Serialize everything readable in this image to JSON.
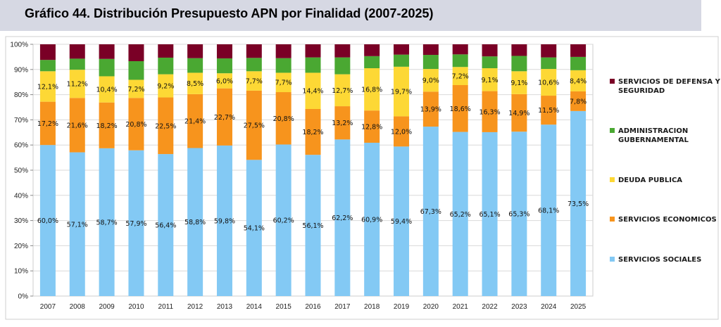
{
  "header": {
    "title": "Gráfico 44. Distribución Presupuesto APN por Finalidad (2007-2025)"
  },
  "chart_data": {
    "type": "bar",
    "stacked": true,
    "title": "Gráfico 44. Distribución Presupuesto APN por Finalidad (2007-2025)",
    "categories": [
      "2007",
      "2008",
      "2009",
      "2010",
      "2011",
      "2012",
      "2013",
      "2014",
      "2015",
      "2016",
      "2017",
      "2018",
      "2019",
      "2020",
      "2021",
      "2022",
      "2023",
      "2024",
      "2025"
    ],
    "ylim": [
      0,
      100
    ],
    "y_ticks": [
      "0%",
      "10%",
      "20%",
      "30%",
      "40%",
      "50%",
      "60%",
      "70%",
      "80%",
      "90%",
      "100%"
    ],
    "grid": true,
    "legend_position": "right",
    "series": [
      {
        "name": "SERVICIOS SOCIALES",
        "color": "#83c9f4",
        "values": [
          60.0,
          57.1,
          58.7,
          57.9,
          56.4,
          58.8,
          59.8,
          54.1,
          60.2,
          56.1,
          62.2,
          60.9,
          59.4,
          67.3,
          65.2,
          65.1,
          65.3,
          68.1,
          73.5
        ],
        "labels": [
          "60,0%",
          "57,1%",
          "58,7%",
          "57,9%",
          "56,4%",
          "58,8%",
          "59,8%",
          "54,1%",
          "60,2%",
          "56,1%",
          "62,2%",
          "60,9%",
          "59,4%",
          "67,3%",
          "65,2%",
          "65,1%",
          "65,3%",
          "68,1%",
          "73,5%"
        ]
      },
      {
        "name": "SERVICIOS ECONOMICOS",
        "color": "#f7941d",
        "values": [
          17.2,
          21.6,
          18.2,
          20.8,
          22.5,
          21.4,
          22.7,
          27.5,
          20.8,
          18.2,
          13.2,
          12.8,
          12.0,
          13.9,
          18.6,
          16.3,
          14.9,
          11.5,
          7.8
        ],
        "labels": [
          "17,2%",
          "21,6%",
          "18,2%",
          "20,8%",
          "22,5%",
          "21,4%",
          "22,7%",
          "27,5%",
          "20,8%",
          "18,2%",
          "13,2%",
          "12,8%",
          "12,0%",
          "13,9%",
          "18,6%",
          "16,3%",
          "14,9%",
          "11,5%",
          "7,8%"
        ]
      },
      {
        "name": "DEUDA PUBLICA",
        "color": "#fdd835",
        "values": [
          12.1,
          11.2,
          10.4,
          7.2,
          9.2,
          8.5,
          6.0,
          7.7,
          7.7,
          14.4,
          12.7,
          16.8,
          19.7,
          9.0,
          7.2,
          9.1,
          9.1,
          10.6,
          8.4
        ],
        "labels": [
          "12,1%",
          "11,2%",
          "10,4%",
          "7,2%",
          "9,2%",
          "8,5%",
          "6,0%",
          "7,7%",
          "7,7%",
          "14,4%",
          "12,7%",
          "16,8%",
          "19,7%",
          "9,0%",
          "7,2%",
          "9,1%",
          "9,1%",
          "10,6%",
          "8,4%"
        ]
      },
      {
        "name": "ADMINISTRACION GUBERNAMENTAL",
        "color": "#4aa832",
        "values": [
          4.5,
          4.4,
          6.9,
          7.4,
          6.6,
          5.8,
          5.9,
          5.3,
          5.8,
          6.1,
          6.7,
          4.8,
          4.8,
          5.6,
          5.0,
          4.7,
          6.1,
          4.6,
          5.3
        ]
      },
      {
        "name": "SERVICIOS DE DEFENSA Y SEGURIDAD",
        "color": "#7a0026",
        "values": [
          6.2,
          5.7,
          5.8,
          6.7,
          5.3,
          5.5,
          5.6,
          5.4,
          5.5,
          5.2,
          5.2,
          4.7,
          4.1,
          4.2,
          4.0,
          4.8,
          4.6,
          5.2,
          5.0
        ]
      }
    ],
    "legend_order": [
      "SERVICIOS DE DEFENSA Y SEGURIDAD",
      "ADMINISTRACION GUBERNAMENTAL",
      "DEUDA PUBLICA",
      "SERVICIOS ECONOMICOS",
      "SERVICIOS SOCIALES"
    ]
  }
}
